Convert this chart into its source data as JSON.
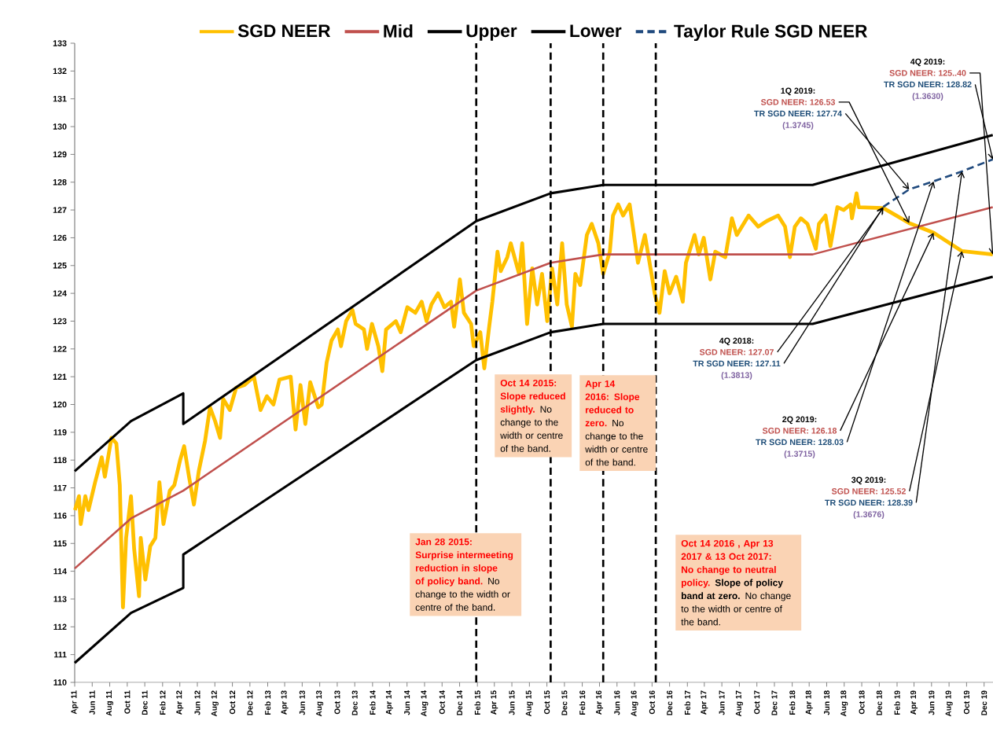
{
  "chart_data": {
    "type": "line",
    "xlim": [
      "2011-04-01",
      "2020-01-01"
    ],
    "xticks": [
      {
        "value": "2011-04",
        "label": "Apr 11"
      },
      {
        "value": "2011-06",
        "label": "Jun 11"
      },
      {
        "value": "2011-08",
        "label": "Aug 11"
      },
      {
        "value": "2011-10",
        "label": "Oct 11"
      },
      {
        "value": "2011-12",
        "label": "Dec 11"
      },
      {
        "value": "2012-02",
        "label": "Feb 12"
      },
      {
        "value": "2012-04",
        "label": "Apr 12"
      },
      {
        "value": "2012-06",
        "label": "Jun 12"
      },
      {
        "value": "2012-08",
        "label": "Aug 12"
      },
      {
        "value": "2012-10",
        "label": "Oct 12"
      },
      {
        "value": "2012-12",
        "label": "Dec 12"
      },
      {
        "value": "2013-02",
        "label": "Feb 13"
      },
      {
        "value": "2013-04",
        "label": "Apr 13"
      },
      {
        "value": "2013-06",
        "label": "Jun 13"
      },
      {
        "value": "2013-08",
        "label": "Aug 13"
      },
      {
        "value": "2013-10",
        "label": "Oct 13"
      },
      {
        "value": "2013-12",
        "label": "Dec 13"
      },
      {
        "value": "2014-02",
        "label": "Feb 14"
      },
      {
        "value": "2014-04",
        "label": "Apr 14"
      },
      {
        "value": "2014-06",
        "label": "Jun 14"
      },
      {
        "value": "2014-08",
        "label": "Aug 14"
      },
      {
        "value": "2014-10",
        "label": "Oct 14"
      },
      {
        "value": "2014-12",
        "label": "Dec 14"
      },
      {
        "value": "2015-02",
        "label": "Feb 15"
      },
      {
        "value": "2015-04",
        "label": "Apr 15"
      },
      {
        "value": "2015-06",
        "label": "Jun 15"
      },
      {
        "value": "2015-08",
        "label": "Aug 15"
      },
      {
        "value": "2015-10",
        "label": "Oct 15"
      },
      {
        "value": "2015-12",
        "label": "Dec 15"
      },
      {
        "value": "2016-02",
        "label": "Feb 16"
      },
      {
        "value": "2016-04",
        "label": "Apr 16"
      },
      {
        "value": "2016-06",
        "label": "Jun 16"
      },
      {
        "value": "2016-08",
        "label": "Aug 16"
      },
      {
        "value": "2016-10",
        "label": "Oct 16"
      },
      {
        "value": "2016-12",
        "label": "Dec 16"
      },
      {
        "value": "2017-02",
        "label": "Feb 17"
      },
      {
        "value": "2017-04",
        "label": "Apr 17"
      },
      {
        "value": "2017-06",
        "label": "Jun 17"
      },
      {
        "value": "2017-08",
        "label": "Aug 17"
      },
      {
        "value": "2017-10",
        "label": "Oct 17"
      },
      {
        "value": "2017-12",
        "label": "Dec 17"
      },
      {
        "value": "2018-02",
        "label": "Feb 18"
      },
      {
        "value": "2018-04",
        "label": "Apr 18"
      },
      {
        "value": "2018-06",
        "label": "Jun 18"
      },
      {
        "value": "2018-08",
        "label": "Aug 18"
      },
      {
        "value": "2018-10",
        "label": "Oct 18"
      },
      {
        "value": "2018-12",
        "label": "Dec 18"
      },
      {
        "value": "2019-02",
        "label": "Feb 19"
      },
      {
        "value": "2019-04",
        "label": "Apr 19"
      },
      {
        "value": "2019-06",
        "label": "Jun 19"
      },
      {
        "value": "2019-08",
        "label": "Aug 19"
      },
      {
        "value": "2019-10",
        "label": "Oct 19"
      },
      {
        "value": "2019-12",
        "label": "Dec 19"
      }
    ],
    "ylim": [
      110,
      133
    ],
    "yticks": [
      110,
      111,
      112,
      113,
      114,
      115,
      116,
      117,
      118,
      119,
      120,
      121,
      122,
      123,
      124,
      125,
      126,
      127,
      128,
      129,
      130,
      131,
      132,
      133
    ],
    "legend": "top",
    "series": [
      {
        "name": "SGD NEER",
        "color": "#ffc000",
        "x": [
          "2011-04-02",
          "2011-04-16",
          "2011-04-22",
          "2011-05-08",
          "2011-05-19",
          "2011-06-11",
          "2011-07-04",
          "2011-07-15",
          "2011-08-07",
          "2011-08-24",
          "2011-09-05",
          "2011-09-16",
          "2011-09-27",
          "2011-10-14",
          "2011-10-25",
          "2011-11-11",
          "2011-11-17",
          "2011-12-03",
          "2011-12-20",
          "2012-01-07",
          "2012-01-21",
          "2012-02-04",
          "2012-02-26",
          "2012-03-13",
          "2012-04-02",
          "2012-04-16",
          "2012-05-03",
          "2012-05-20",
          "2012-06-06",
          "2012-06-28",
          "2012-07-15",
          "2012-08-02",
          "2012-08-19",
          "2012-08-30",
          "2012-09-22",
          "2012-10-14",
          "2012-11-12",
          "2012-12-15",
          "2013-01-07",
          "2013-01-29",
          "2013-02-21",
          "2013-03-14",
          "2013-04-22",
          "2013-05-09",
          "2013-05-26",
          "2013-06-12",
          "2013-06-29",
          "2013-07-27",
          "2013-08-08",
          "2013-08-25",
          "2013-09-11",
          "2013-10-03",
          "2013-10-14",
          "2013-11-01",
          "2013-11-23",
          "2013-12-04",
          "2014-01-02",
          "2014-01-13",
          "2014-01-30",
          "2014-02-21",
          "2014-03-07",
          "2014-03-20",
          "2014-04-23",
          "2014-05-10",
          "2014-06-02",
          "2014-06-30",
          "2014-07-22",
          "2014-08-08",
          "2014-08-25",
          "2014-09-17",
          "2014-10-09",
          "2014-11-01",
          "2014-11-12",
          "2014-12-02",
          "2014-12-16",
          "2015-01-10",
          "2015-01-19",
          "2015-02-11",
          "2015-02-25",
          "2015-03-14",
          "2015-03-25",
          "2015-04-12",
          "2015-04-23",
          "2015-05-16",
          "2015-05-28",
          "2015-06-26",
          "2015-07-07",
          "2015-07-24",
          "2015-08-11",
          "2015-08-28",
          "2015-09-14",
          "2015-10-02",
          "2015-10-19",
          "2015-11-06",
          "2015-11-23",
          "2015-12-09",
          "2015-12-27",
          "2016-01-08",
          "2016-01-25",
          "2016-02-17",
          "2016-03-05",
          "2016-03-28",
          "2016-04-14",
          "2016-05-07",
          "2016-05-18",
          "2016-06-05",
          "2016-06-22",
          "2016-07-15",
          "2016-07-26",
          "2016-08-13",
          "2016-09-06",
          "2016-09-29",
          "2016-10-10",
          "2016-10-27",
          "2016-11-14",
          "2016-12-01",
          "2016-12-24",
          "2017-01-16",
          "2017-01-27",
          "2017-02-26",
          "2017-03-13",
          "2017-03-30",
          "2017-04-22",
          "2017-05-09",
          "2017-06-13",
          "2017-07-06",
          "2017-07-23",
          "2017-09-02",
          "2017-10-06",
          "2017-11-04",
          "2017-12-14",
          "2018-01-07",
          "2018-01-24",
          "2018-02-10",
          "2018-03-03",
          "2018-03-26",
          "2018-04-24",
          "2018-05-05",
          "2018-05-28",
          "2018-06-14",
          "2018-07-08",
          "2018-07-30",
          "2018-08-23",
          "2018-08-28",
          "2018-09-13",
          "2018-09-21",
          "2018-12-15",
          "2019-03-15",
          "2019-06-08",
          "2019-09-15",
          "2019-12-31"
        ],
        "values": [
          116.2,
          116.7,
          115.7,
          116.7,
          116.2,
          117.2,
          118.1,
          117.4,
          118.8,
          118.6,
          117.1,
          112.7,
          115.2,
          116.7,
          114.8,
          113.1,
          115.2,
          113.7,
          114.9,
          115.2,
          117.2,
          115.7,
          116.9,
          117.1,
          118.0,
          118.5,
          117.4,
          116.4,
          117.6,
          118.7,
          119.9,
          119.4,
          118.8,
          120.2,
          119.8,
          120.6,
          120.7,
          121.0,
          119.8,
          120.3,
          120.0,
          120.9,
          121.0,
          119.1,
          120.7,
          119.3,
          120.8,
          119.9,
          120.0,
          121.5,
          122.3,
          122.7,
          122.1,
          123.0,
          123.4,
          122.9,
          122.7,
          122.0,
          122.9,
          122.1,
          121.2,
          122.7,
          123.0,
          122.6,
          123.5,
          123.3,
          123.7,
          123.0,
          123.6,
          124.0,
          123.5,
          123.7,
          122.8,
          124.5,
          123.3,
          122.9,
          122.1,
          122.6,
          121.3,
          122.8,
          123.7,
          125.5,
          124.8,
          125.3,
          125.8,
          124.7,
          125.8,
          122.9,
          124.9,
          123.6,
          124.7,
          123.0,
          124.9,
          123.6,
          125.8,
          123.6,
          122.8,
          124.7,
          124.3,
          126.1,
          126.5,
          125.8,
          124.7,
          125.5,
          126.8,
          127.2,
          126.8,
          127.2,
          126.4,
          125.1,
          126.1,
          124.7,
          124.0,
          123.3,
          124.8,
          124.0,
          124.6,
          123.7,
          125.1,
          126.1,
          125.4,
          126.0,
          124.5,
          125.5,
          125.3,
          126.7,
          126.1,
          126.8,
          126.4,
          126.6,
          126.8,
          126.4,
          125.3,
          126.4,
          126.7,
          126.5,
          125.6,
          126.5,
          126.8,
          125.7,
          127.1,
          127.0,
          127.2,
          126.7,
          127.6,
          127.1,
          127.07,
          126.53,
          126.18,
          125.52,
          125.4
        ]
      },
      {
        "name": "Mid",
        "color": "#c0504d",
        "x": [
          "2011-04-01",
          "2011-10-14",
          "2012-04-13",
          "2015-01-28",
          "2015-10-14",
          "2016-04-14",
          "2018-04-13",
          "2019-12-31"
        ],
        "values": [
          114.1,
          115.9,
          116.9,
          124.1,
          125.1,
          125.4,
          125.4,
          127.1
        ]
      },
      {
        "name": "Upper",
        "color": "#000000",
        "x": [
          "2011-04-01",
          "2011-10-14",
          "2012-04-13",
          "2012-04-13",
          "2015-01-28",
          "2015-10-14",
          "2016-04-14",
          "2018-04-13",
          "2019-12-31"
        ],
        "values": [
          117.6,
          119.4,
          120.4,
          119.3,
          126.6,
          127.6,
          127.9,
          127.9,
          129.7
        ]
      },
      {
        "name": "Lower",
        "color": "#000000",
        "x": [
          "2011-04-01",
          "2011-10-14",
          "2012-04-13",
          "2012-04-13",
          "2015-01-28",
          "2015-10-14",
          "2016-04-14",
          "2018-04-13",
          "2019-12-31"
        ],
        "values": [
          110.7,
          112.5,
          113.4,
          114.6,
          121.6,
          122.6,
          122.9,
          122.9,
          124.6
        ]
      },
      {
        "name": "Taylor Rule SGD NEER",
        "color": "#1f497d",
        "line_style": "dashed",
        "x": [
          "2018-12-15",
          "2019-03-15",
          "2019-06-08",
          "2019-09-15",
          "2019-12-31"
        ],
        "values": [
          127.11,
          127.74,
          128.03,
          128.39,
          128.82
        ]
      }
    ],
    "ref_lines": [
      {
        "axis": "x",
        "value": "2015-01-28",
        "color": "#000000",
        "line_style": "dashed"
      },
      {
        "axis": "x",
        "value": "2015-10-14",
        "color": "#000000",
        "line_style": "dashed"
      },
      {
        "axis": "x",
        "value": "2016-04-14",
        "color": "#000000",
        "line_style": "dashed"
      },
      {
        "axis": "x",
        "value": "2016-10-14",
        "color": "#000000",
        "line_style": "dashed"
      }
    ],
    "annotations": [
      "Jan 28 2015: Surprise intermeeting reduction in slope of policy band.",
      "No change to the width or centre of the band.",
      "Oct 14 2015: Slope reduced slightly.",
      "No change to the width or centre of the band.",
      "Apr 14 2016: Slope reduced to zero.",
      "No change to the width or centre of the band.",
      "Oct 14 2016 , Apr 13 2017 & 13 Oct 2017: No change to neutral policy.",
      "**Slope of policy band at zero.** No change to the width or centre of the band.",
      "4Q 2018:",
      {
        "text": "SGD NEER: 127.07",
        "x": "2018-12-15",
        "y": 127.07
      },
      {
        "text": "TR SGD NEER: 127.11",
        "x": "2018-12-15",
        "y": 127.11
      },
      "(1.3813)",
      "1Q 2019:",
      {
        "text": "SGD NEER: 126.53",
        "x": "2019-03-15",
        "y": 126.53
      },
      {
        "text": "TR SGD NEER: 127.74",
        "x": "2019-03-15",
        "y": 127.74
      },
      "(1.3745)",
      "2Q 2019:",
      {
        "text": "SGD NEER: 126.18",
        "x": "2019-06-08",
        "y": 126.18
      },
      {
        "text": "TR SGD NEER: 128.03",
        "x": "2019-06-08",
        "y": 128.03
      },
      "(1.3715)",
      "3Q 2019:",
      {
        "text": "SGD NEER: 125.52",
        "x": "2019-09-15",
        "y": 125.52
      },
      {
        "text": "TR SGD NEER: 128.39",
        "x": "2019-09-15",
        "y": 128.39
      },
      "(1.3676)",
      "4Q 2019:",
      {
        "text": "SGD NEER: 125..40",
        "x": "2019-12-31",
        "y": 125.4
      },
      {
        "text": "TR SGD NEER: 128.82",
        "x": "2019-12-31",
        "y": 128.82
      },
      "(1.3630)"
    ]
  }
}
